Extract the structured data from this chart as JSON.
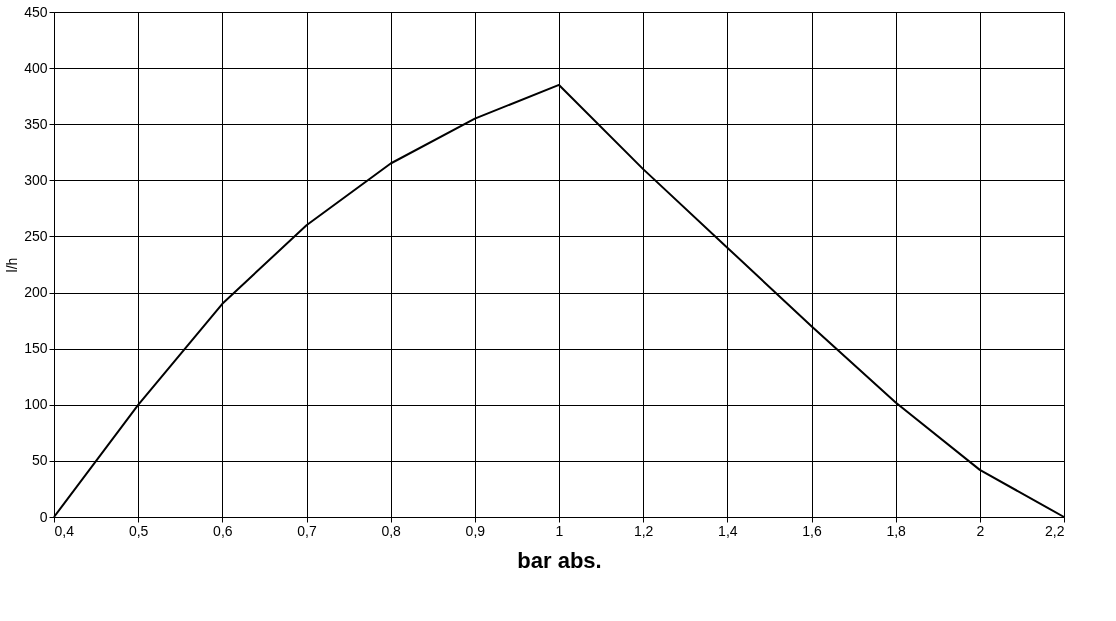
{
  "chart_data": {
    "type": "line",
    "xlabel": "bar abs.",
    "ylabel": "l/h",
    "categories": [
      "0,4",
      "0,5",
      "0,6",
      "0,7",
      "0,8",
      "0,9",
      "1",
      "1,2",
      "1,4",
      "1,6",
      "1,8",
      "2",
      "2,2"
    ],
    "series": [
      {
        "color": "#000000",
        "values": [
          0,
          100,
          190,
          260,
          315,
          355,
          385,
          310,
          240,
          170,
          102,
          42,
          0
        ]
      }
    ],
    "ylim": [
      0,
      450
    ],
    "yticks": [
      0,
      50,
      100,
      150,
      200,
      250,
      300,
      350,
      400,
      450
    ],
    "grid": true,
    "marker": "none",
    "line_style": "solid"
  }
}
